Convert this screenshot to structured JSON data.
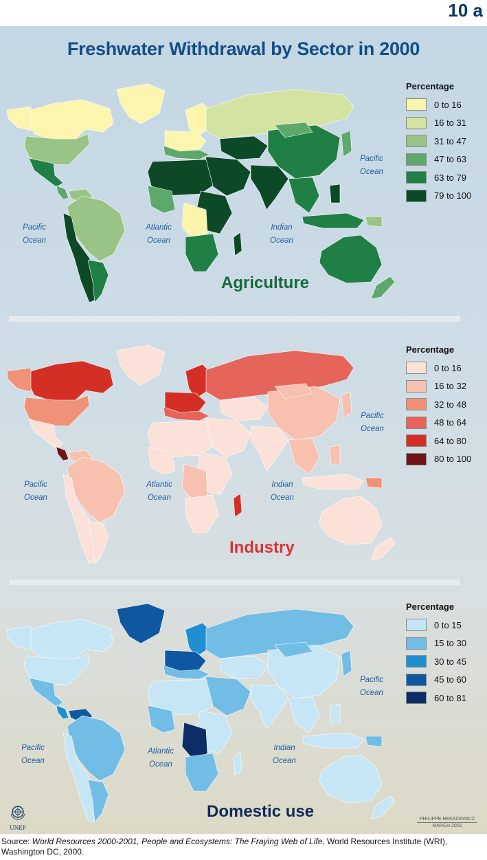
{
  "page_number": "10 a",
  "title": "Freshwater Withdrawal by Sector in 2000",
  "oceans": {
    "pacific": "Pacific Ocean",
    "atlantic": "Atlantic Ocean",
    "indian": "Indian Ocean"
  },
  "maps": [
    {
      "name": "Agriculture",
      "label_color": "#166b3c",
      "legend_title": "Percentage",
      "legend": [
        {
          "label": "0 to 16",
          "color": "#fbf5ae"
        },
        {
          "label": "16 to 31",
          "color": "#d3e3a2"
        },
        {
          "label": "31 to 47",
          "color": "#99c485"
        },
        {
          "label": "47 to 63",
          "color": "#5ea86b"
        },
        {
          "label": "63 to 79",
          "color": "#1f7f45"
        },
        {
          "label": "79 to 100",
          "color": "#0d4927"
        }
      ]
    },
    {
      "name": "Industry",
      "label_color": "#d8323a",
      "legend_title": "Percentage",
      "legend": [
        {
          "label": "0 to 16",
          "color": "#fce1d8"
        },
        {
          "label": "16 to 32",
          "color": "#f8c0ae"
        },
        {
          "label": "32 to 48",
          "color": "#ef9277"
        },
        {
          "label": "48 to 64",
          "color": "#e6655a"
        },
        {
          "label": "64 to 80",
          "color": "#d42f25"
        },
        {
          "label": "80 to 100",
          "color": "#6e1518"
        }
      ]
    },
    {
      "name": "Domestic use",
      "label_color": "#102a5c",
      "legend_title": "Percentage",
      "legend": [
        {
          "label": "0 to 15",
          "color": "#c6e6f5"
        },
        {
          "label": "15 to 30",
          "color": "#72bde6"
        },
        {
          "label": "30 to 45",
          "color": "#1f8fd0"
        },
        {
          "label": "45 to 60",
          "color": "#0f57a1"
        },
        {
          "label": "60 to 81",
          "color": "#0c2d66"
        }
      ]
    }
  ],
  "credit": {
    "author": "PHILIPPE REKACEWICZ",
    "date": "MARCH 2002"
  },
  "logo_text": "UNEP",
  "source": {
    "prefix": "Source: ",
    "title": "World Resources 2000-2001, People and Ecosystems: The Fraying Web of Life",
    "suffix": ", World Resources Institute (WRI), Washington DC, 2000."
  }
}
